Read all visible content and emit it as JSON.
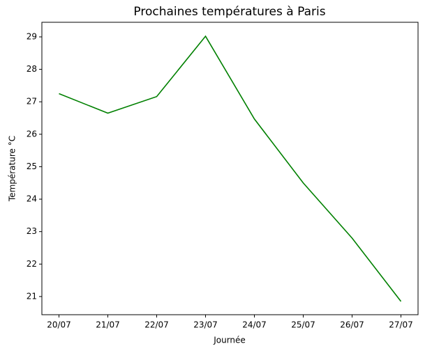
{
  "chart_data": {
    "type": "line",
    "title": "Prochaines températures à Paris",
    "x_label": "Journée",
    "y_label": "Température °C",
    "categories": [
      "20/07",
      "21/07",
      "22/07",
      "23/07",
      "24/07",
      "25/07",
      "26/07",
      "27/07"
    ],
    "series": [
      {
        "name": "Température",
        "color": "#008000",
        "values": [
          27.25,
          26.65,
          27.16,
          29.02,
          26.47,
          24.5,
          22.8,
          20.85
        ]
      }
    ],
    "ylim": [
      20.44,
      29.45
    ],
    "yticks": [
      21,
      22,
      23,
      24,
      25,
      26,
      27,
      28,
      29
    ],
    "grid": false
  }
}
